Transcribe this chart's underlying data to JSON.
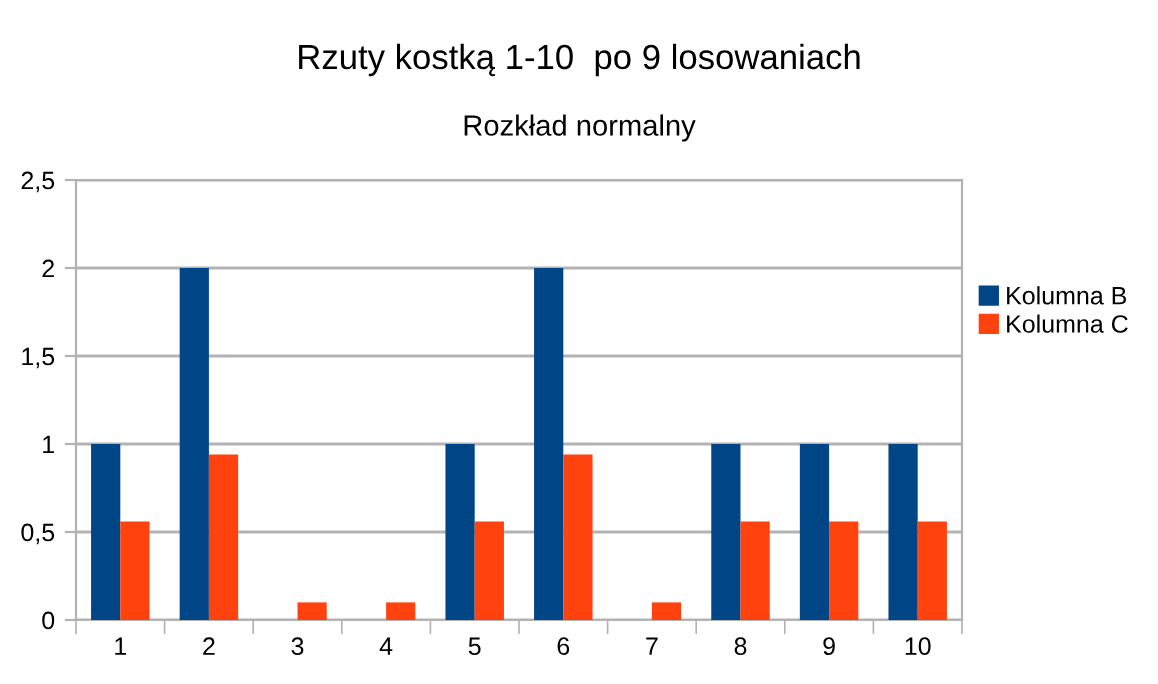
{
  "chart_data": {
    "type": "bar",
    "title": "Rzuty kostką 1-10  po 9 losowaniach",
    "subtitle": "Rozkład normalny",
    "categories": [
      "1",
      "2",
      "3",
      "4",
      "5",
      "6",
      "7",
      "8",
      "9",
      "10"
    ],
    "series": [
      {
        "name": "Kolumna B",
        "color": "#004586",
        "values": [
          1,
          2,
          0,
          0,
          1,
          2,
          0,
          1,
          1,
          1
        ]
      },
      {
        "name": "Kolumna C",
        "color": "#ff420e",
        "values": [
          0.56,
          0.94,
          0.1,
          0.1,
          0.56,
          0.94,
          0.1,
          0.56,
          0.56,
          0.56
        ]
      }
    ],
    "ylim": [
      0,
      2.5
    ],
    "yticks": [
      {
        "value": 0,
        "label": "0"
      },
      {
        "value": 0.5,
        "label": "0,5"
      },
      {
        "value": 1,
        "label": "1"
      },
      {
        "value": 1.5,
        "label": "1,5"
      },
      {
        "value": 2,
        "label": "2"
      },
      {
        "value": 2.5,
        "label": "2,5"
      }
    ],
    "grid": "y",
    "legend": "right"
  }
}
